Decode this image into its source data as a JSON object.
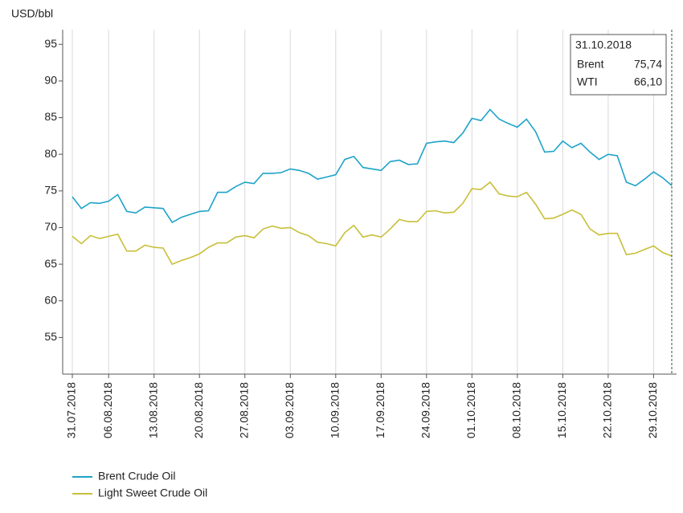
{
  "chart_data": {
    "type": "line",
    "ylabel": "USD/bbl",
    "x": [
      "31.07.2018",
      "01.08.2018",
      "02.08.2018",
      "03.08.2018",
      "06.08.2018",
      "07.08.2018",
      "08.08.2018",
      "09.08.2018",
      "10.08.2018",
      "13.08.2018",
      "14.08.2018",
      "15.08.2018",
      "16.08.2018",
      "17.08.2018",
      "20.08.2018",
      "21.08.2018",
      "22.08.2018",
      "23.08.2018",
      "24.08.2018",
      "27.08.2018",
      "28.08.2018",
      "29.08.2018",
      "30.08.2018",
      "31.08.2018",
      "03.09.2018",
      "04.09.2018",
      "05.09.2018",
      "06.09.2018",
      "07.09.2018",
      "10.09.2018",
      "11.09.2018",
      "12.09.2018",
      "13.09.2018",
      "14.09.2018",
      "17.09.2018",
      "18.09.2018",
      "19.09.2018",
      "20.09.2018",
      "21.09.2018",
      "24.09.2018",
      "25.09.2018",
      "26.09.2018",
      "27.09.2018",
      "28.09.2018",
      "01.10.2018",
      "02.10.2018",
      "03.10.2018",
      "04.10.2018",
      "05.10.2018",
      "08.10.2018",
      "09.10.2018",
      "10.10.2018",
      "11.10.2018",
      "12.10.2018",
      "15.10.2018",
      "16.10.2018",
      "17.10.2018",
      "18.10.2018",
      "19.10.2018",
      "22.10.2018",
      "23.10.2018",
      "24.10.2018",
      "25.10.2018",
      "26.10.2018",
      "29.10.2018",
      "30.10.2018",
      "31.10.2018"
    ],
    "xticks": [
      "31.07.2018",
      "06.08.2018",
      "13.08.2018",
      "20.08.2018",
      "27.08.2018",
      "03.09.2018",
      "10.09.2018",
      "17.09.2018",
      "24.09.2018",
      "01.10.2018",
      "08.10.2018",
      "15.10.2018",
      "22.10.2018",
      "29.10.2018"
    ],
    "series": [
      {
        "name": "Brent Crude Oil",
        "color": "#1ea3c9",
        "values": [
          74.2,
          72.6,
          73.4,
          73.3,
          73.6,
          74.5,
          72.2,
          72.0,
          72.8,
          72.7,
          72.6,
          70.7,
          71.4,
          71.8,
          72.2,
          72.3,
          74.8,
          74.8,
          75.6,
          76.2,
          76.0,
          77.4,
          77.4,
          77.5,
          78.0,
          77.8,
          77.4,
          76.6,
          76.9,
          77.2,
          79.3,
          79.7,
          78.2,
          78.0,
          77.8,
          79.0,
          79.2,
          78.6,
          78.7,
          81.5,
          81.7,
          81.8,
          81.6,
          82.9,
          84.9,
          84.6,
          86.1,
          84.8,
          84.2,
          83.7,
          84.8,
          83.1,
          80.3,
          80.4,
          81.8,
          80.9,
          81.5,
          80.3,
          79.3,
          80.0,
          79.8,
          76.2,
          75.7,
          76.6,
          77.6,
          76.8,
          75.74
        ]
      },
      {
        "name": "Light Sweet Crude Oil",
        "color": "#c8bf3a",
        "values": [
          68.8,
          67.8,
          68.9,
          68.5,
          68.8,
          69.1,
          66.8,
          66.8,
          67.6,
          67.3,
          67.2,
          65.0,
          65.5,
          65.9,
          66.4,
          67.3,
          67.9,
          67.9,
          68.7,
          68.9,
          68.6,
          69.8,
          70.2,
          69.9,
          70.0,
          69.3,
          68.9,
          68.0,
          67.8,
          67.5,
          69.3,
          70.3,
          68.7,
          69.0,
          68.7,
          69.8,
          71.1,
          70.8,
          70.8,
          72.2,
          72.3,
          72.0,
          72.1,
          73.3,
          75.3,
          75.2,
          76.2,
          74.6,
          74.3,
          74.2,
          74.8,
          73.2,
          71.2,
          71.3,
          71.8,
          72.4,
          71.8,
          69.8,
          69.0,
          69.2,
          69.2,
          66.3,
          66.5,
          67.0,
          67.5,
          66.6,
          66.1
        ]
      }
    ],
    "ylim": [
      50,
      97
    ],
    "yticks": [
      55,
      60,
      65,
      70,
      75,
      80,
      85,
      90,
      95
    ],
    "grid": "x",
    "legend": "bottom-left",
    "tooltip": {
      "date": "31.10.2018",
      "rows": [
        {
          "name": "Brent",
          "value_label": "75,74"
        },
        {
          "name": "WTI",
          "value_label": "66,10"
        }
      ]
    }
  }
}
